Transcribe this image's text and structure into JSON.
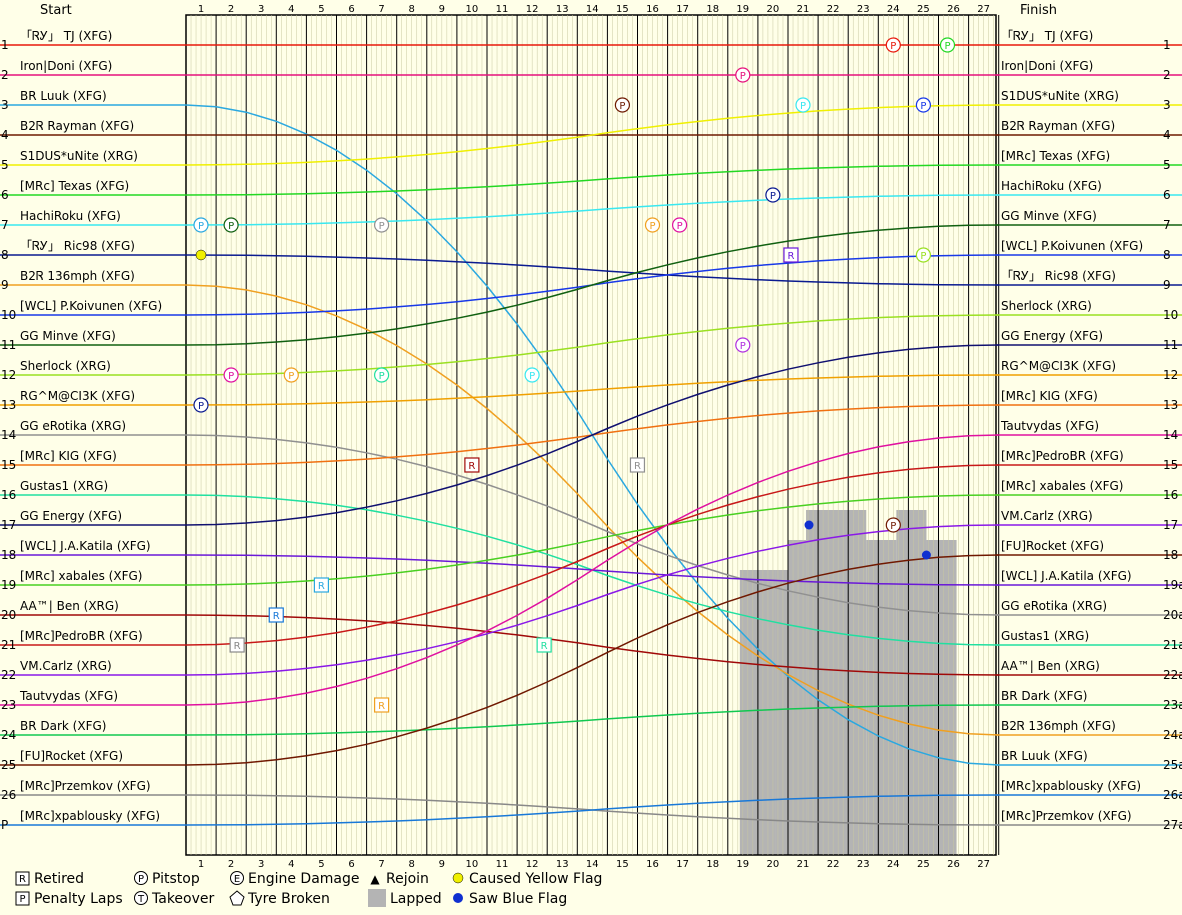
{
  "chart_data": {
    "type": "line",
    "header_start": "Start",
    "header_finish": "Finish",
    "laps": [
      1,
      2,
      3,
      4,
      5,
      6,
      7,
      8,
      9,
      10,
      11,
      12,
      13,
      14,
      15,
      16,
      17,
      18,
      19,
      20,
      21,
      22,
      23,
      24,
      25,
      26,
      27
    ],
    "position_labels": [
      "1",
      "2",
      "3",
      "4",
      "5",
      "6",
      "7",
      "8",
      "9",
      "10",
      "11",
      "12",
      "13",
      "14",
      "15",
      "16",
      "17",
      "18",
      "19",
      "20",
      "21",
      "22",
      "23",
      "24",
      "25",
      "26",
      "P"
    ],
    "finish_position_labels": [
      "1",
      "2",
      "3",
      "4",
      "5",
      "6",
      "7",
      "8",
      "9",
      "10",
      "11",
      "12",
      "13",
      "14",
      "15",
      "16",
      "17",
      "18",
      "19a",
      "20a",
      "21a",
      "22a",
      "23a",
      "24a",
      "25a",
      "26a",
      "27a"
    ],
    "drivers": [
      {
        "name": "「ᏒᎩ」 TJ (XFG)",
        "color": "#e8180a",
        "start": 1,
        "finish": 1
      },
      {
        "name": "Iron|Doni (XFG)",
        "color": "#e6117c",
        "start": 2,
        "finish": 2
      },
      {
        "name": "BR Luuk (XFG)",
        "color": "#2aa8e0",
        "start": 3,
        "finish": 25
      },
      {
        "name": "B2Ꮢ Rayman (XFG)",
        "color": "#6e1a00",
        "start": 4,
        "finish": 4
      },
      {
        "name": "S1DUS*uNite (XRG)",
        "color": "#f0f000",
        "start": 5,
        "finish": 3
      },
      {
        "name": "[MRc] Texas (XFG)",
        "color": "#22d822",
        "start": 6,
        "finish": 5
      },
      {
        "name": "HachiRoku (XFG)",
        "color": "#38e8f0",
        "start": 7,
        "finish": 6
      },
      {
        "name": "「ᏒᎩ」 Ric98 (XFG)",
        "color": "#0a1a90",
        "start": 8,
        "finish": 9
      },
      {
        "name": "B2Ꮢ 136mph (XFG)",
        "color": "#f0a020",
        "start": 9,
        "finish": 24
      },
      {
        "name": "[WCL] P.Koivunen (XFG)",
        "color": "#1838e8",
        "start": 10,
        "finish": 8
      },
      {
        "name": "GG Minve (XFG)",
        "color": "#106010",
        "start": 11,
        "finish": 7
      },
      {
        "name": "Sherlock (XRG)",
        "color": "#9ae020",
        "start": 12,
        "finish": 10
      },
      {
        "name": "RG^M@CI3K (XFG)",
        "color": "#f0a000",
        "start": 13,
        "finish": 12
      },
      {
        "name": "GG eRotika (XRG)",
        "color": "#909090",
        "start": 14,
        "finish": 20
      },
      {
        "name": "[MRc] KIG (XFG)",
        "color": "#f07010",
        "start": 15,
        "finish": 13
      },
      {
        "name": "Gustas1 (XRG)",
        "color": "#20e0a0",
        "start": 16,
        "finish": 21
      },
      {
        "name": "GG Energy (XFG)",
        "color": "#101070",
        "start": 17,
        "finish": 11
      },
      {
        "name": "[WCL] J.A.Katila (XFG)",
        "color": "#6a18d8",
        "start": 18,
        "finish": 19
      },
      {
        "name": "[MRc] xabales (XFG)",
        "color": "#48d020",
        "start": 19,
        "finish": 16
      },
      {
        "name": "AA™| Ben (XRG)",
        "color": "#a00808",
        "start": 20,
        "finish": 22
      },
      {
        "name": "[MRc]PedroBR (XFG)",
        "color": "#c81818",
        "start": 21,
        "finish": 15
      },
      {
        "name": "VM.Carlz (XRG)",
        "color": "#8a18e8",
        "start": 22,
        "finish": 17
      },
      {
        "name": "Tautvydas (XFG)",
        "color": "#e010a0",
        "start": 23,
        "finish": 14
      },
      {
        "name": "BR Dark (XFG)",
        "color": "#10c850",
        "start": 24,
        "finish": 23
      },
      {
        "name": "[FU]Rocket (XFG)",
        "color": "#701800",
        "start": 25,
        "finish": 18
      },
      {
        "name": "[MRc]Przemkov (XFG)",
        "color": "#888888",
        "start": 26,
        "finish": 27
      },
      {
        "name": "[MRc]xpablousky (XFG)",
        "color": "#1878d8",
        "start": 27,
        "finish": 26
      }
    ],
    "finish_order": [
      "「ᏒᎩ」 TJ (XFG)",
      "Iron|Doni (XFG)",
      "S1DUS*uNite (XRG)",
      "B2Ꮢ Rayman (XFG)",
      "[MRc] Texas (XFG)",
      "HachiRoku (XFG)",
      "GG Minve (XFG)",
      "[WCL] P.Koivunen (XFG)",
      "「ᏒᎩ」 Ric98 (XFG)",
      "Sherlock (XRG)",
      "GG Energy (XFG)",
      "RG^M@CI3K (XFG)",
      "[MRc] KIG (XFG)",
      "Tautvydas (XFG)",
      "[MRc]PedroBR (XFG)",
      "[MRc] xabales (XFG)",
      "VM.Carlz (XRG)",
      "[FU]Rocket (XFG)",
      "[WCL] J.A.Katila (XFG)",
      "GG eRotika (XRG)",
      "Gustas1 (XRG)",
      "AA™| Ben (XRG)",
      "BR Dark (XFG)",
      "B2Ꮢ 136mph (XFG)",
      "BR Luuk (XFG)",
      "[MRc]xpablousky (XFG)",
      "[MRc]Przemkov (XFG)"
    ],
    "events": [
      {
        "type": "pitstop",
        "lap": 24,
        "pos": 1,
        "color": "#e8180a"
      },
      {
        "type": "pitstop",
        "lap": 25.8,
        "pos": 1,
        "color": "#22d822"
      },
      {
        "type": "pitstop",
        "lap": 19,
        "pos": 2,
        "color": "#e6117c"
      },
      {
        "type": "pitstop",
        "lap": 15,
        "pos": 3,
        "color": "#6e1a00"
      },
      {
        "type": "pitstop",
        "lap": 21,
        "pos": 3,
        "color": "#38e8f0"
      },
      {
        "type": "pitstop",
        "lap": 25,
        "pos": 3,
        "color": "#1838e8"
      },
      {
        "type": "pitstop",
        "lap": 20,
        "pos": 6,
        "color": "#0a1a90"
      },
      {
        "type": "pitstop",
        "lap": 1,
        "pos": 7,
        "color": "#2aa8e0"
      },
      {
        "type": "pitstop",
        "lap": 2,
        "pos": 7,
        "color": "#106010"
      },
      {
        "type": "pitstop",
        "lap": 7,
        "pos": 7,
        "color": "#909090"
      },
      {
        "type": "pitstop",
        "lap": 16,
        "pos": 7,
        "color": "#f0a020"
      },
      {
        "type": "pitstop",
        "lap": 16.9,
        "pos": 7,
        "color": "#e010a0"
      },
      {
        "type": "pitstop",
        "lap": 25,
        "pos": 8,
        "color": "#9ae020"
      },
      {
        "type": "pitstop",
        "lap": 19,
        "pos": 11,
        "color": "#b030e0"
      },
      {
        "type": "pitstop",
        "lap": 2,
        "pos": 12,
        "color": "#e010a0"
      },
      {
        "type": "pitstop",
        "lap": 4,
        "pos": 12,
        "color": "#f0a020"
      },
      {
        "type": "pitstop",
        "lap": 7,
        "pos": 12,
        "color": "#20e0a0"
      },
      {
        "type": "pitstop",
        "lap": 12,
        "pos": 12,
        "color": "#38e8f0"
      },
      {
        "type": "pitstop",
        "lap": 24,
        "pos": 17,
        "color": "#701800"
      },
      {
        "type": "pitstop",
        "lap": 1,
        "pos": 13,
        "color": "#0a1a90"
      },
      {
        "type": "retired",
        "lap": 20.6,
        "pos": 8,
        "color": "#6a18d8"
      },
      {
        "type": "retired",
        "lap": 10,
        "pos": 15,
        "color": "#a00808"
      },
      {
        "type": "retired",
        "lap": 15.5,
        "pos": 15,
        "color": "#909090"
      },
      {
        "type": "retired",
        "lap": 5,
        "pos": 19,
        "color": "#2aa8e0"
      },
      {
        "type": "retired",
        "lap": 3.5,
        "pos": 20,
        "color": "#1878d8"
      },
      {
        "type": "retired",
        "lap": 2.2,
        "pos": 21,
        "color": "#888888"
      },
      {
        "type": "retired",
        "lap": 12.4,
        "pos": 21,
        "color": "#20e0a0"
      },
      {
        "type": "retired",
        "lap": 7,
        "pos": 23,
        "color": "#f0a020"
      },
      {
        "type": "blueflag",
        "lap": 21.2,
        "pos": 17
      },
      {
        "type": "blueflag",
        "lap": 25.1,
        "pos": 18
      },
      {
        "type": "yellowflag",
        "lap": 1,
        "pos": 8
      }
    ],
    "lapped_area": [
      {
        "lap": 19.4,
        "pos_from": 19
      },
      {
        "lap": 20,
        "pos_from": 19
      },
      {
        "lap": 20.6,
        "pos_from": 19
      },
      {
        "lap": 21,
        "pos_from": 18
      },
      {
        "lap": 21.6,
        "pos_from": 17
      },
      {
        "lap": 22,
        "pos_from": 17
      },
      {
        "lap": 23,
        "pos_from": 17
      },
      {
        "lap": 23.6,
        "pos_from": 18
      },
      {
        "lap": 24,
        "pos_from": 18
      },
      {
        "lap": 24.6,
        "pos_from": 17
      },
      {
        "lap": 25,
        "pos_from": 17
      },
      {
        "lap": 25.6,
        "pos_from": 18
      },
      {
        "lap": 26.6,
        "pos_from": 17
      }
    ],
    "legend": [
      {
        "symbol": "R",
        "label": "Retired"
      },
      {
        "symbol": "P",
        "label": "Pitstop"
      },
      {
        "symbol": "E",
        "label": "Engine Damage"
      },
      {
        "symbol": "▲",
        "label": "Rejoin"
      },
      {
        "symbol": "yellow-dot",
        "label": "Caused Yellow Flag"
      },
      {
        "symbol": "P",
        "label": "Penalty Laps"
      },
      {
        "symbol": "T",
        "label": "Takeover"
      },
      {
        "symbol": "tyre",
        "label": "Tyre Broken"
      },
      {
        "symbol": "gray-box",
        "label": "Lapped"
      },
      {
        "symbol": "blue-dot",
        "label": "Saw Blue Flag"
      }
    ],
    "colors": {
      "background": "#ffffe8",
      "grid": "#000000",
      "minor_grid": "#c8c8a0",
      "lapped": "#b4b4b4",
      "blue_flag": "#1030d0",
      "yellow_flag": "#f0f000"
    }
  }
}
